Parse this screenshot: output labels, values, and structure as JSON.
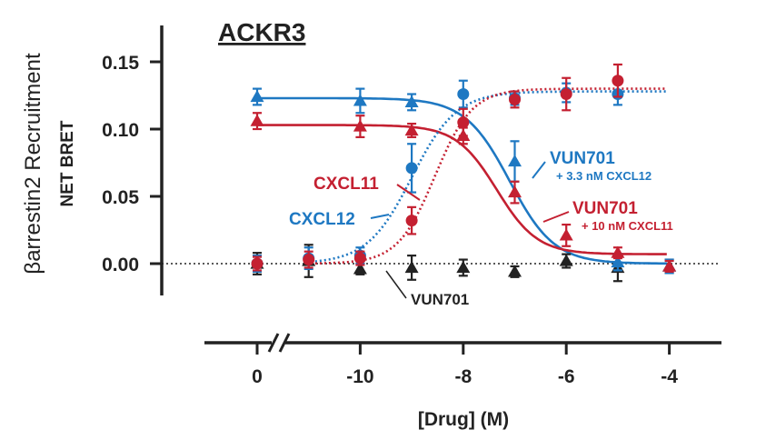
{
  "chart_data": {
    "type": "scatter",
    "title": "ACKR3",
    "xlabel": "[Drug] (M)",
    "ylabel_primary": "βarrestin2 Recruitment",
    "ylabel_secondary": "NET BRET",
    "ylim": [
      -0.025,
      0.175
    ],
    "yticks": [
      "0.00",
      "0.05",
      "0.10",
      "0.15"
    ],
    "xticks": [
      "0",
      "-10",
      "-8",
      "-6",
      "-4"
    ],
    "x_break_label": "0",
    "grid": false,
    "baseline_y": 0,
    "colors": {
      "blue": "#1e78c2",
      "red": "#c42031",
      "black": "#222222"
    },
    "series": [
      {
        "key": "vun701",
        "color": "#222222",
        "marker": "triangle",
        "x": [
          "0",
          -11,
          -10,
          -9,
          -8,
          -7,
          -6,
          -5,
          -4
        ],
        "y": [
          0.0,
          0.002,
          -0.004,
          -0.003,
          -0.003,
          -0.006,
          0.002,
          -0.003,
          -0.002
        ],
        "err": [
          0.008,
          0.012,
          0.004,
          0.009,
          0.006,
          0.004,
          0.005,
          0.01,
          0.005
        ]
      },
      {
        "key": "cxcl12",
        "color": "#1e78c2",
        "marker": "circle",
        "curve": {
          "bottom": 0.0,
          "top": 0.128,
          "logEC50": -9.0,
          "hill": 1.0,
          "style": "dotted"
        },
        "x": [
          "0",
          -11,
          -10,
          -9,
          -8,
          -7,
          -6,
          -5
        ],
        "y": [
          0.0,
          0.004,
          0.006,
          0.071,
          0.126,
          0.123,
          0.127,
          0.126
        ],
        "err": [
          0.006,
          0.008,
          0.006,
          0.018,
          0.01,
          0.005,
          0.007,
          0.008
        ]
      },
      {
        "key": "cxcl11",
        "color": "#c42031",
        "marker": "circle",
        "curve": {
          "bottom": 0.0,
          "top": 0.13,
          "logEC50": -8.55,
          "hill": 1.2,
          "style": "dotted"
        },
        "x": [
          "0",
          -11,
          -10,
          -9,
          -8,
          -7,
          -6,
          -5
        ],
        "y": [
          0.0,
          0.003,
          0.004,
          0.032,
          0.105,
          0.122,
          0.126,
          0.136
        ],
        "err": [
          0.005,
          0.006,
          0.005,
          0.01,
          0.01,
          0.006,
          0.012,
          0.012
        ]
      },
      {
        "key": "vun701_cxcl12",
        "color": "#1e78c2",
        "marker": "triangle",
        "curve": {
          "bottom": 0.0,
          "top": 0.123,
          "logEC50": -7.1,
          "hill": -1.0,
          "style": "solid"
        },
        "x": [
          "0",
          -10,
          -9,
          -7,
          -5,
          -4
        ],
        "y": [
          0.124,
          0.121,
          0.12,
          0.076,
          0.001,
          -0.002
        ],
        "err": [
          0.006,
          0.009,
          0.006,
          0.015,
          0.006,
          0.005
        ]
      },
      {
        "key": "vun701_cxcl11",
        "color": "#c42031",
        "marker": "triangle",
        "curve": {
          "bottom": 0.007,
          "top": 0.103,
          "logEC50": -7.35,
          "hill": -1.1,
          "style": "solid"
        },
        "x": [
          "0",
          -10,
          -9,
          -8,
          -7,
          -6,
          -5,
          -4
        ],
        "y": [
          0.106,
          0.102,
          0.099,
          0.095,
          0.053,
          0.021,
          0.008,
          -0.002
        ],
        "err": [
          0.006,
          0.008,
          0.005,
          0.006,
          0.008,
          0.008,
          0.004,
          0.004
        ]
      }
    ],
    "annotations": {
      "vun701_blue_main": "VUN701",
      "vun701_blue_sub": "+ 3.3 nM CXCL12",
      "vun701_red_main": "VUN701",
      "vun701_red_sub": "+ 10 nM CXCL11",
      "cxcl11": "CXCL11",
      "cxcl12": "CXCL12",
      "vun701_black": "VUN701"
    }
  }
}
